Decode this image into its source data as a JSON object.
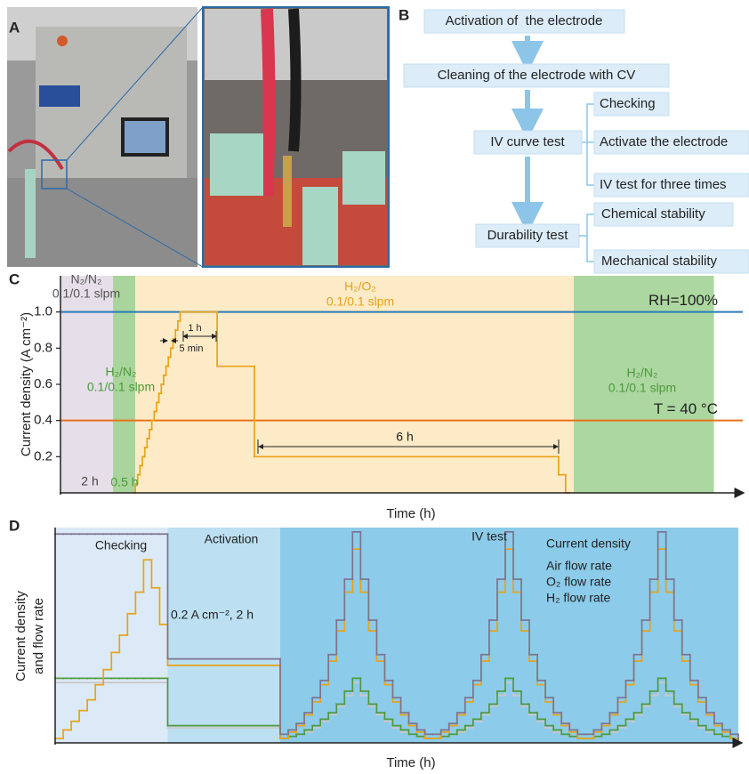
{
  "figure": {
    "panel_labels": [
      "A",
      "B",
      "C",
      "D"
    ]
  },
  "flowchart": {
    "nodes": [
      "Activation of  the electrode",
      "Cleaning of the electrode with CV",
      "IV curve test",
      "Checking",
      "Activate the electrode",
      "IV test for three times",
      "Durability test",
      "Chemical stability",
      "Mechanical stability"
    ]
  },
  "chart_data": [
    {
      "type": "line",
      "step": "post",
      "ylabel": "Current density (A cm⁻²)",
      "xlabel": "Time (h)",
      "x": [
        2.78,
        2.85,
        2.94,
        3.03,
        3.12,
        3.21,
        3.3,
        3.39,
        3.48,
        3.57,
        3.66,
        3.75,
        3.84,
        3.93,
        4.02,
        4.11,
        4.2,
        4.29,
        4.38,
        4.47,
        4.56,
        5.97,
        7.39,
        18.98,
        19.25,
        19.39
      ],
      "values": [
        0,
        0.05,
        0.1,
        0.15,
        0.2,
        0.25,
        0.3,
        0.35,
        0.4,
        0.45,
        0.5,
        0.55,
        0.6,
        0.65,
        0.7,
        0.75,
        0.8,
        0.85,
        0.9,
        0.95,
        1.0,
        0.7,
        0.2,
        0.1,
        0,
        0
      ],
      "color": "#e8a317",
      "xlim": [
        0,
        26
      ],
      "ylim": [
        0,
        1.2
      ],
      "yticks": [
        0.2,
        0.4,
        0.6,
        0.8,
        {
          "value": 1,
          "label": "1.0"
        }
      ],
      "reference_lines": [
        {
          "label": "RH=100%",
          "value": 1,
          "color": "#2b7bba"
        },
        {
          "label": "T = 40 °C",
          "value": 0.4,
          "color": "#e8731c"
        }
      ],
      "regions": [
        {
          "x": [
            0,
            2
          ],
          "color": "#e6dfe9",
          "labels": [
            "N₂/N₂",
            "0.1/0.1 slpm",
            "2 h"
          ]
        },
        {
          "x": [
            2,
            2.85
          ],
          "color": "#a9d49b",
          "labels": [
            "H₂/N₂",
            "0.1/0.1 slpm",
            "0.5 h"
          ]
        },
        {
          "x": [
            2.85,
            19.56
          ],
          "color": "#fcebc6",
          "labels": [
            "H₂/O₂",
            "0.1/0.1 slpm"
          ]
        },
        {
          "x": [
            19.56,
            24.9
          ],
          "color": "#acd7a0",
          "labels": [
            "H₂/N₂",
            "0.1/0.1 slpm"
          ]
        }
      ],
      "annotations": [
        "1 h",
        "5 min",
        "6 h"
      ]
    },
    {
      "type": "line",
      "step": "post",
      "ylabel": [
        "Current density",
        "and flow rate"
      ],
      "xlabel": "Time (h)",
      "x": [
        0,
        0.5,
        1,
        1.5,
        2,
        2.5,
        3,
        3.5,
        4,
        4.5,
        5,
        5.5,
        6,
        6.5,
        7,
        14,
        14.5,
        15,
        15.5,
        16,
        16.5,
        17,
        17.5,
        18,
        18.5,
        19,
        19.5,
        20,
        20.5,
        21,
        21.5,
        22,
        22.5,
        23,
        23.5,
        24,
        24.5,
        25,
        25.5,
        26,
        26.5,
        27,
        27.5,
        28,
        28.5,
        29,
        29.5,
        30,
        30.5,
        31,
        31.5,
        32,
        32.5,
        33,
        33.5,
        34,
        34.5,
        35,
        35.5,
        36,
        36.5,
        37,
        37.5,
        38,
        38.5,
        39,
        39.5,
        40,
        40.5,
        41,
        41.5,
        42,
        42.5
      ],
      "xlim": [
        0,
        42.5
      ],
      "ylim": [
        0,
        1
      ],
      "series": [
        {
          "name": "Current density",
          "color": "#e8a317",
          "values": [
            0.02,
            0.06,
            0.1,
            0.15,
            0.2,
            0.27,
            0.34,
            0.42,
            0.5,
            0.6,
            0.7,
            0.85,
            0.72,
            0.55,
            0.36,
            0.02,
            0.05,
            0.08,
            0.13,
            0.19,
            0.27,
            0.38,
            0.52,
            0.7,
            0.9,
            0.7,
            0.52,
            0.38,
            0.27,
            0.19,
            0.13,
            0.08,
            0.05,
            0.02,
            0.02,
            0.05,
            0.08,
            0.13,
            0.19,
            0.27,
            0.38,
            0.52,
            0.7,
            0.9,
            0.7,
            0.52,
            0.38,
            0.27,
            0.19,
            0.13,
            0.08,
            0.05,
            0.02,
            0.02,
            0.05,
            0.08,
            0.13,
            0.19,
            0.27,
            0.38,
            0.52,
            0.7,
            0.9,
            0.7,
            0.52,
            0.38,
            0.27,
            0.19,
            0.13,
            0.08,
            0.05,
            0.02,
            0
          ]
        },
        {
          "name": "Air flow rate",
          "color": "#7d7490",
          "values": [
            0.97,
            0.97,
            0.97,
            0.97,
            0.97,
            0.97,
            0.97,
            0.97,
            0.97,
            0.97,
            0.97,
            0.97,
            0.97,
            0.97,
            0.39,
            0.04,
            0.06,
            0.09,
            0.14,
            0.21,
            0.29,
            0.41,
            0.57,
            0.76,
            0.98,
            0.76,
            0.57,
            0.41,
            0.29,
            0.21,
            0.14,
            0.09,
            0.06,
            0.04,
            0.04,
            0.06,
            0.09,
            0.14,
            0.21,
            0.29,
            0.41,
            0.57,
            0.76,
            0.98,
            0.76,
            0.57,
            0.41,
            0.29,
            0.21,
            0.14,
            0.09,
            0.06,
            0.04,
            0.04,
            0.06,
            0.09,
            0.14,
            0.21,
            0.29,
            0.41,
            0.57,
            0.76,
            0.98,
            0.76,
            0.57,
            0.41,
            0.29,
            0.21,
            0.14,
            0.09,
            0.06,
            0.04,
            0
          ]
        },
        {
          "name": "O₂ flow rate",
          "color": "#cbc7c7",
          "values": [
            0.28,
            0.28,
            0.28,
            0.28,
            0.28,
            0.28,
            0.28,
            0.28,
            0.28,
            0.28,
            0.28,
            0.28,
            0.28,
            0.28,
            0.07,
            0.02,
            0.03,
            0.04,
            0.05,
            0.07,
            0.1,
            0.13,
            0.17,
            0.22,
            0.28,
            0.22,
            0.17,
            0.13,
            0.1,
            0.07,
            0.05,
            0.04,
            0.03,
            0.02,
            0.02,
            0.03,
            0.04,
            0.05,
            0.07,
            0.1,
            0.13,
            0.17,
            0.22,
            0.28,
            0.22,
            0.17,
            0.13,
            0.1,
            0.07,
            0.05,
            0.04,
            0.03,
            0.02,
            0.02,
            0.03,
            0.04,
            0.05,
            0.07,
            0.1,
            0.13,
            0.17,
            0.22,
            0.28,
            0.22,
            0.17,
            0.13,
            0.1,
            0.07,
            0.05,
            0.04,
            0.03,
            0.02,
            0
          ]
        },
        {
          "name": "H₂ flow rate",
          "color": "#4f9a3c",
          "values": [
            0.3,
            0.3,
            0.3,
            0.3,
            0.3,
            0.3,
            0.3,
            0.3,
            0.3,
            0.3,
            0.3,
            0.3,
            0.3,
            0.3,
            0.08,
            0.02,
            0.03,
            0.04,
            0.06,
            0.08,
            0.11,
            0.14,
            0.18,
            0.24,
            0.3,
            0.24,
            0.18,
            0.14,
            0.11,
            0.08,
            0.06,
            0.04,
            0.03,
            0.02,
            0.02,
            0.03,
            0.04,
            0.06,
            0.08,
            0.11,
            0.14,
            0.18,
            0.24,
            0.3,
            0.24,
            0.18,
            0.14,
            0.11,
            0.08,
            0.06,
            0.04,
            0.03,
            0.02,
            0.02,
            0.03,
            0.04,
            0.06,
            0.08,
            0.11,
            0.14,
            0.18,
            0.24,
            0.3,
            0.24,
            0.18,
            0.14,
            0.11,
            0.08,
            0.06,
            0.04,
            0.03,
            0.02,
            0
          ]
        }
      ],
      "regions": [
        {
          "x": [
            0,
            7
          ],
          "color": "#dce9f6",
          "labels": [
            "Checking"
          ]
        },
        {
          "x": [
            7,
            14
          ],
          "color": "#bcdff2",
          "labels": [
            "Activation",
            "0.2 A cm⁻², 2 h"
          ]
        },
        {
          "x": [
            14,
            42.5
          ],
          "color": "#8ccbea",
          "labels": [
            "IV test"
          ]
        }
      ]
    }
  ]
}
